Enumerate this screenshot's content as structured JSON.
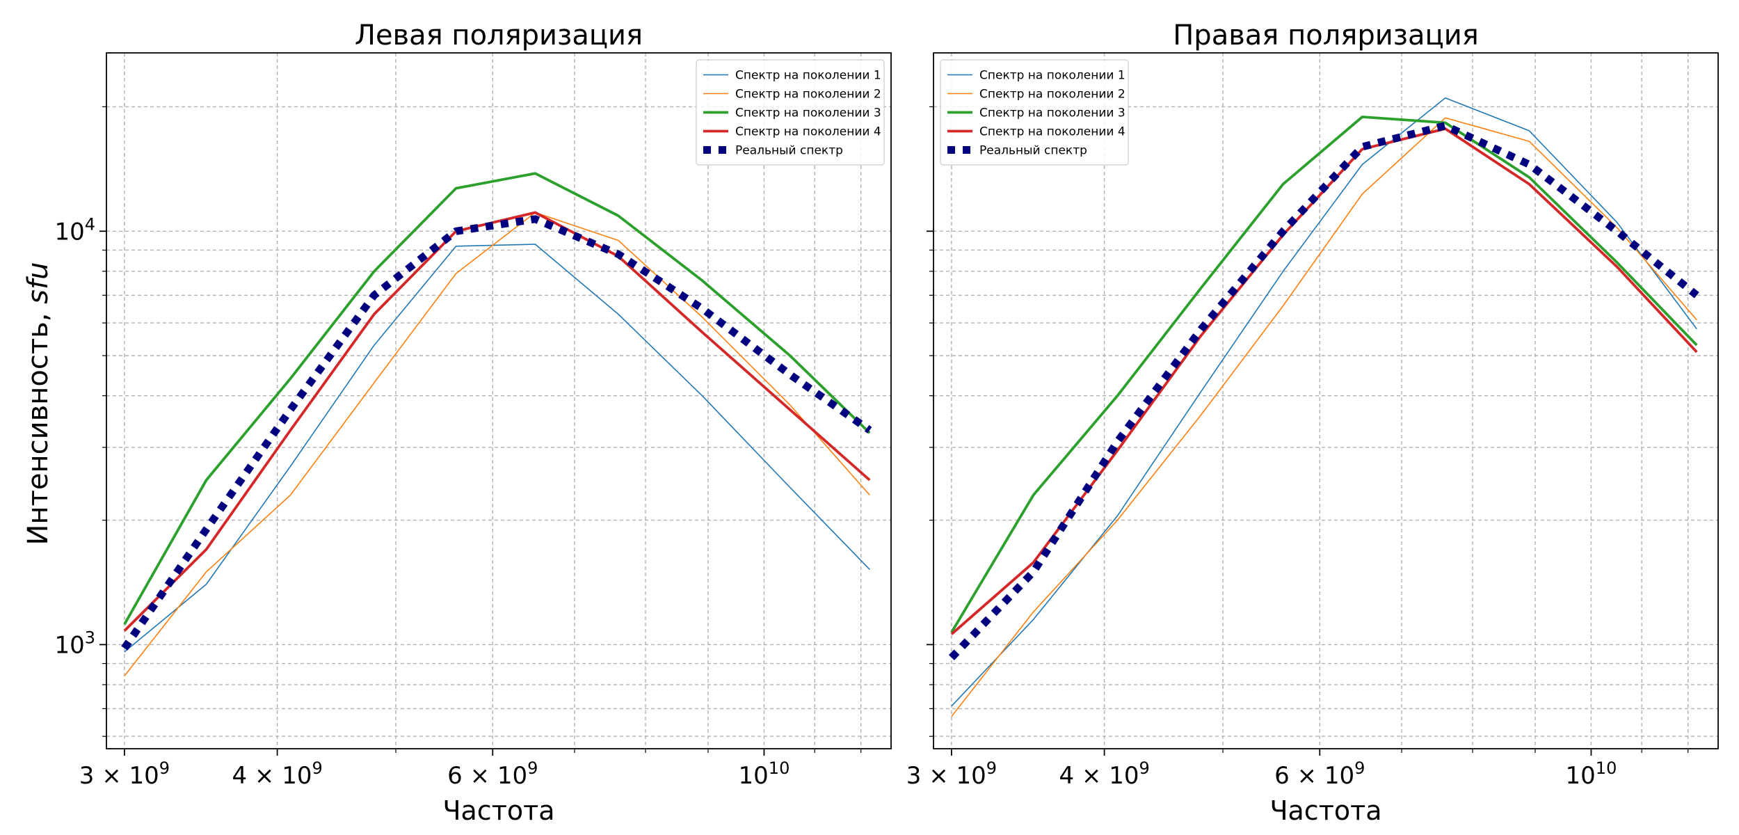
{
  "figure": {
    "ylabel": "Интенсивность, ",
    "ylabel_italic": "sfu",
    "xlabel": "Частота"
  },
  "chart_data": [
    {
      "type": "line",
      "title": "Левая поляризация",
      "xlabel": "Частота",
      "ylabel": "Интенсивность, sfu",
      "xscale": "log",
      "yscale": "log",
      "xlim": [
        2900000000,
        12700000000
      ],
      "ylim": [
        560,
        27000
      ],
      "grid": "major+minor, dashed",
      "legend_position": "top-right",
      "x": [
        3000000000,
        3500000000,
        4100000000,
        4800000000,
        5600000000,
        6500000000,
        7600000000,
        8900000000,
        10500000000,
        12200000000
      ],
      "x_tick_labels": [
        "3 × 10^9",
        "4 × 10^9",
        "6 × 10^9",
        "10^10"
      ],
      "x_tick_values": [
        3000000000,
        4000000000,
        6000000000,
        10000000000
      ],
      "y_tick_labels": [
        "10^3",
        "10^4"
      ],
      "y_tick_values": [
        1000,
        10000
      ],
      "series": [
        {
          "name": "Спектр на поколении 1",
          "color": "#1f77b4",
          "style": "thin",
          "values": [
            960,
            1400,
            2700,
            5300,
            9200,
            9300,
            6300,
            4000,
            2400,
            1520
          ]
        },
        {
          "name": "Спектр на поколении 2",
          "color": "#ff7f0e",
          "style": "thin",
          "values": [
            840,
            1500,
            2300,
            4300,
            7900,
            11100,
            9500,
            6200,
            3800,
            2300
          ]
        },
        {
          "name": "Спектр на поколении 3",
          "color": "#2ca02c",
          "style": "medium",
          "values": [
            1120,
            2500,
            4400,
            8000,
            12700,
            13800,
            10900,
            7600,
            5000,
            3250
          ]
        },
        {
          "name": "Спектр на поколении 4",
          "color": "#d62728",
          "style": "medium",
          "values": [
            1080,
            1700,
            3300,
            6300,
            10000,
            11100,
            8700,
            5700,
            3700,
            2500
          ]
        },
        {
          "name": "Реальный спектр",
          "color": "#00007f",
          "style": "dotted-thick",
          "values": [
            980,
            1900,
            3700,
            7000,
            10000,
            10700,
            8800,
            6500,
            4500,
            3300
          ]
        }
      ]
    },
    {
      "type": "line",
      "title": "Правая поляризация",
      "xlabel": "Частота",
      "xscale": "log",
      "yscale": "log",
      "xlim": [
        2900000000,
        12700000000
      ],
      "ylim": [
        560,
        27000
      ],
      "grid": "major+minor, dashed",
      "legend_position": "top-left",
      "x": [
        3000000000,
        3500000000,
        4100000000,
        4800000000,
        5600000000,
        6500000000,
        7600000000,
        8900000000,
        10500000000,
        12200000000
      ],
      "x_tick_labels": [
        "3 × 10^9",
        "4 × 10^9",
        "6 × 10^9",
        "10^10"
      ],
      "x_tick_values": [
        3000000000,
        4000000000,
        6000000000,
        10000000000
      ],
      "series": [
        {
          "name": "Спектр на поколении 1",
          "color": "#1f77b4",
          "style": "thin",
          "values": [
            710,
            1150,
            2050,
            4100,
            8000,
            14500,
            21000,
            17500,
            10500,
            5800
          ]
        },
        {
          "name": "Спектр на поколении 2",
          "color": "#ff7f0e",
          "style": "thin",
          "values": [
            670,
            1200,
            2000,
            3600,
            6600,
            12300,
            18800,
            16500,
            10200,
            6100
          ]
        },
        {
          "name": "Спектр на поколении 3",
          "color": "#2ca02c",
          "style": "medium",
          "values": [
            1070,
            2300,
            4000,
            7300,
            13000,
            18900,
            18300,
            13500,
            8400,
            5300
          ]
        },
        {
          "name": "Спектр на поколении 4",
          "color": "#d62728",
          "style": "medium",
          "values": [
            1060,
            1580,
            2950,
            5600,
            9800,
            15800,
            17700,
            13000,
            8200,
            5100
          ]
        },
        {
          "name": "Реальный спектр",
          "color": "#00007f",
          "style": "dotted-thick",
          "values": [
            930,
            1500,
            3100,
            5800,
            10000,
            16000,
            18000,
            14500,
            10000,
            7000
          ]
        }
      ]
    }
  ]
}
